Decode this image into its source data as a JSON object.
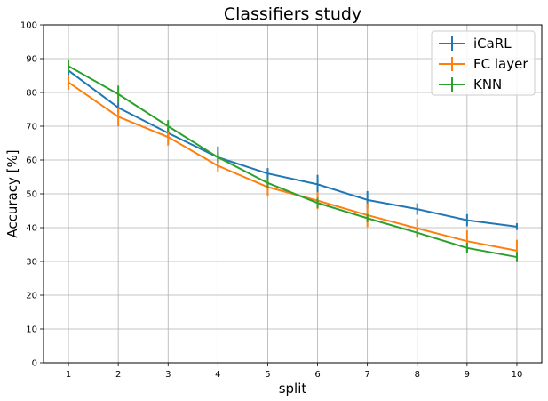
{
  "chart_data": {
    "type": "line",
    "title": "Classifiers study",
    "xlabel": "split",
    "ylabel": "Accuracy [%]",
    "x": [
      1,
      2,
      3,
      4,
      5,
      6,
      7,
      8,
      9,
      10
    ],
    "xlim": [
      0.5,
      10.5
    ],
    "ylim": [
      0,
      100
    ],
    "yticks": [
      0,
      10,
      20,
      30,
      40,
      50,
      60,
      70,
      80,
      90,
      100
    ],
    "grid": true,
    "legend_position": "top-right",
    "series": [
      {
        "name": "iCaRL",
        "color": "#1f77b4",
        "values": [
          86.5,
          75.5,
          68.0,
          60.8,
          56.0,
          52.8,
          48.2,
          45.5,
          42.2,
          40.3
        ],
        "errors": [
          2.0,
          1.5,
          1.5,
          3.2,
          1.6,
          2.8,
          2.6,
          1.7,
          1.8,
          1.0
        ]
      },
      {
        "name": "FC layer",
        "color": "#ff7f0e",
        "values": [
          83.0,
          72.8,
          66.8,
          58.3,
          52.0,
          48.0,
          43.7,
          39.8,
          36.0,
          33.2
        ],
        "errors": [
          2.2,
          2.8,
          2.5,
          1.8,
          2.5,
          2.5,
          3.5,
          2.8,
          3.2,
          3.2
        ]
      },
      {
        "name": "KNN",
        "color": "#2ca02c",
        "values": [
          87.8,
          79.5,
          70.0,
          60.8,
          53.2,
          47.3,
          42.8,
          38.5,
          34.0,
          31.3
        ],
        "errors": [
          1.8,
          2.5,
          1.8,
          1.5,
          1.5,
          1.5,
          1.2,
          1.2,
          1.5,
          1.5
        ]
      }
    ]
  }
}
